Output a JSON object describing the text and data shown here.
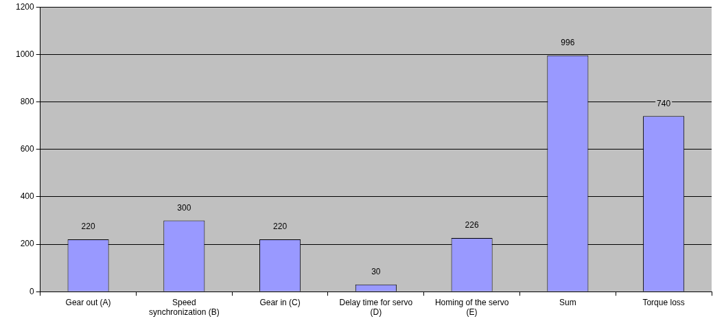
{
  "chart_data": {
    "type": "bar",
    "categories": [
      "Gear out (A)",
      "Speed synchronization (B)",
      "Gear in (C)",
      "Delay time for servo (D)",
      "Homing of the servo (E)",
      "Sum",
      "Torque loss"
    ],
    "values": [
      220,
      300,
      220,
      30,
      226,
      996,
      740
    ],
    "color": "#9999ff",
    "ylim": [
      0,
      1200
    ],
    "yticks": [
      0,
      200,
      400,
      600,
      800,
      1000,
      1200
    ],
    "grid": "y",
    "legend": false,
    "data_labels": true
  }
}
